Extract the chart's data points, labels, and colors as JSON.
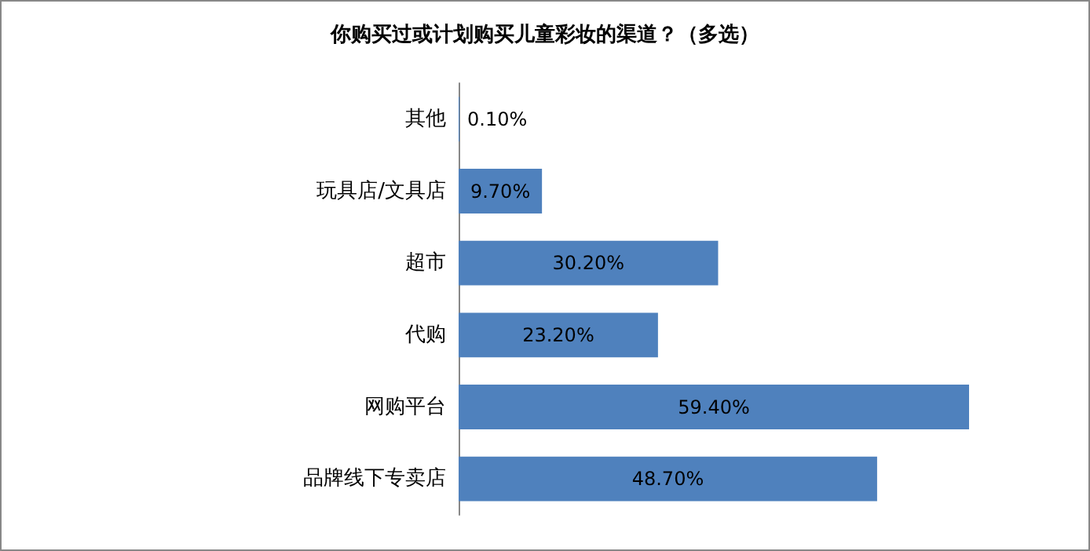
{
  "chart_data": {
    "type": "bar",
    "orientation": "horizontal",
    "title": "你购买过或计划购买儿童彩妆的渠道？（多选）",
    "categories": [
      "其他",
      "玩具店/文具店",
      "超市",
      "代购",
      "网购平台",
      "品牌线下专卖店"
    ],
    "values": [
      0.1,
      9.7,
      30.2,
      23.2,
      59.4,
      48.7
    ],
    "value_labels": [
      "0.10%",
      "9.70%",
      "30.20%",
      "23.20%",
      "59.40%",
      "48.70%"
    ],
    "color": "#4f81bd"
  }
}
